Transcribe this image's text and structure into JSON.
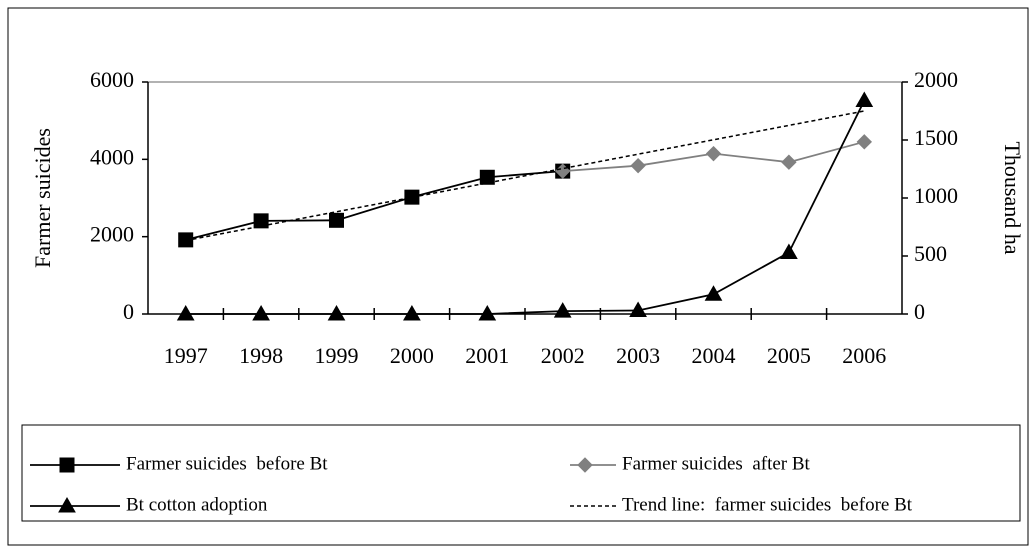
{
  "chart_data": {
    "type": "line",
    "y_label": "Farmer suicides",
    "y2_label": "Thousand ha",
    "categories": [
      "1997",
      "1998",
      "1999",
      "2000",
      "2001",
      "2002",
      "2003",
      "2004",
      "2005",
      "2006"
    ],
    "series": [
      {
        "name": "Farmer suicides  before Bt",
        "color": "#000000",
        "marker": "square",
        "dash": false,
        "values": [
          1917,
          2409,
          2423,
          3022,
          3536,
          3695,
          null,
          null,
          null,
          null
        ]
      },
      {
        "name": "Farmer suicides  after Bt",
        "color": "#808080",
        "marker": "diamond",
        "dash": false,
        "values": [
          null,
          null,
          null,
          null,
          null,
          3695,
          3836,
          4147,
          3926,
          4453
        ]
      },
      {
        "name": "Bt cotton adoption",
        "color": "#000000",
        "marker": "triangle",
        "dash": false,
        "axis": "y2",
        "values": [
          0,
          0,
          0,
          0,
          0,
          25,
          30,
          170,
          530,
          1840
        ]
      },
      {
        "name": "Trend line:  farmer suicides  before Bt",
        "color": "#000000",
        "marker": "none",
        "dash": true,
        "values": [
          1900,
          2272,
          2644,
          3017,
          3389,
          3761,
          4133,
          4506,
          4878,
          5250
        ]
      }
    ],
    "ylim": [
      0,
      6000
    ],
    "yticks": [
      0,
      2000,
      4000,
      6000
    ],
    "y2lim": [
      0,
      2000
    ],
    "y2ticks": [
      0,
      500,
      1000,
      1500,
      2000
    ],
    "legend": "bottom"
  }
}
